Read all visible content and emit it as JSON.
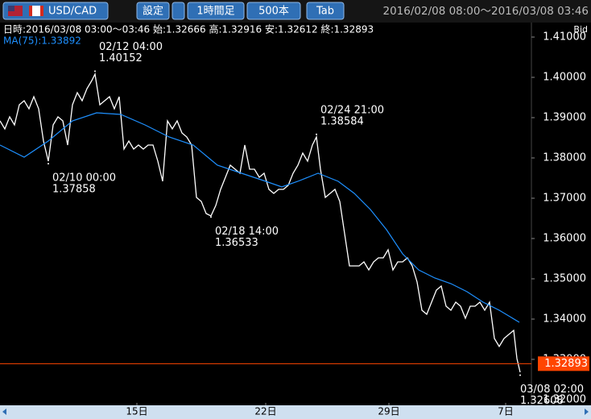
{
  "header": {
    "symbol": "USD/CAD",
    "settings": "設定",
    "timeframe": "1時間足",
    "bars": "500本",
    "tab": "Tab",
    "range": "2016/02/08 08:00～2016/03/08 03:46"
  },
  "chart_data": {
    "type": "line",
    "info": "日時:2016/03/08 03:00～03:46 始:1.32666 高:1.32916 安:1.32612 終:1.32893",
    "price_side": "Bid",
    "xlim": [
      0,
      660
    ],
    "xticks": [
      {
        "value": 170,
        "label": "15日"
      },
      {
        "value": 330,
        "label": "22日"
      },
      {
        "value": 483,
        "label": "29日"
      },
      {
        "value": 628,
        "label": "7日"
      }
    ],
    "ylim": [
      1.3192,
      1.4132
    ],
    "yticks": [
      {
        "value": 1.32,
        "label": "1.32000"
      },
      {
        "value": 1.33,
        "label": "1.33000"
      },
      {
        "value": 1.34,
        "label": "1.34000"
      },
      {
        "value": 1.35,
        "label": "1.35000"
      },
      {
        "value": 1.36,
        "label": "1.36000"
      },
      {
        "value": 1.37,
        "label": "1.37000"
      },
      {
        "value": 1.38,
        "label": "1.38000"
      },
      {
        "value": 1.39,
        "label": "1.39000"
      },
      {
        "value": 1.4,
        "label": "1.40000"
      },
      {
        "value": 1.41,
        "label": "1.41000"
      }
    ],
    "last_price": 1.32893,
    "last_price_color": "#ff4500",
    "x": [
      0,
      6,
      12,
      18,
      24,
      30,
      36,
      42,
      48,
      54,
      60,
      66,
      72,
      78,
      84,
      90,
      96,
      102,
      108,
      114,
      118,
      124,
      130,
      136,
      142,
      148,
      154,
      160,
      166,
      172,
      178,
      184,
      190,
      196,
      202,
      208,
      214,
      220,
      226,
      232,
      238,
      244,
      250,
      256,
      262,
      268,
      274,
      280,
      286,
      292,
      298,
      304,
      310,
      316,
      322,
      328,
      334,
      340,
      346,
      352,
      358,
      364,
      370,
      376,
      382,
      388,
      393,
      398,
      404,
      410,
      416,
      422,
      428,
      434,
      440,
      446,
      452,
      458,
      464,
      470,
      476,
      482,
      488,
      494,
      500,
      506,
      512,
      518,
      524,
      530,
      536,
      542,
      548,
      554,
      560,
      566,
      572,
      578,
      584,
      590,
      596,
      602,
      608,
      614,
      620,
      626,
      632,
      638,
      642,
      646
    ],
    "series": [
      {
        "name": "Price",
        "color": "#ffffff",
        "values": [
          1.3892,
          1.3872,
          1.3902,
          1.3882,
          1.3932,
          1.3942,
          1.3922,
          1.3952,
          1.3922,
          1.3842,
          1.3792,
          1.3882,
          1.3902,
          1.3892,
          1.3832,
          1.3932,
          1.3962,
          1.3942,
          1.3972,
          1.3992,
          1.4008,
          1.3932,
          1.3942,
          1.3952,
          1.3922,
          1.3952,
          1.3822,
          1.3842,
          1.3822,
          1.3832,
          1.3822,
          1.3832,
          1.3832,
          1.3792,
          1.3742,
          1.3892,
          1.3872,
          1.3892,
          1.3862,
          1.3852,
          1.3832,
          1.3702,
          1.3692,
          1.3662,
          1.3656,
          1.3682,
          1.3722,
          1.3752,
          1.3782,
          1.3772,
          1.3762,
          1.3832,
          1.3772,
          1.3772,
          1.3752,
          1.3762,
          1.3722,
          1.3712,
          1.3722,
          1.3722,
          1.3732,
          1.3762,
          1.3782,
          1.3812,
          1.3792,
          1.3832,
          1.3852,
          1.3772,
          1.3702,
          1.3712,
          1.3722,
          1.3692,
          1.3612,
          1.3532,
          1.3532,
          1.3532,
          1.3542,
          1.3522,
          1.3542,
          1.3552,
          1.3552,
          1.3572,
          1.3522,
          1.3542,
          1.3542,
          1.3552,
          1.3532,
          1.3492,
          1.3422,
          1.3412,
          1.3442,
          1.3472,
          1.3482,
          1.3432,
          1.3422,
          1.3442,
          1.3432,
          1.3402,
          1.3432,
          1.3432,
          1.3442,
          1.3422,
          1.3442,
          1.3352,
          1.3332,
          1.3352,
          1.3362,
          1.3372,
          1.3302,
          1.3268
        ]
      },
      {
        "name": "MA(75):1.33892",
        "color": "#1e90ff",
        "x": [
          0,
          30,
          60,
          90,
          120,
          150,
          180,
          210,
          240,
          270,
          300,
          330,
          350,
          370,
          395,
          420,
          440,
          460,
          480,
          500,
          520,
          540,
          560,
          580,
          600,
          620,
          645
        ],
        "values": [
          1.3832,
          1.3802,
          1.3842,
          1.3892,
          1.3912,
          1.3908,
          1.3882,
          1.3852,
          1.3832,
          1.3782,
          1.3762,
          1.3742,
          1.3728,
          1.3742,
          1.3762,
          1.3742,
          1.3712,
          1.3672,
          1.3622,
          1.3562,
          1.3522,
          1.3502,
          1.3488,
          1.3468,
          1.3442,
          1.3422,
          1.3392
        ]
      }
    ],
    "annotations": [
      {
        "time": "02/12 04:00",
        "x": 118,
        "value": 1.40152
      },
      {
        "time": "02/10 00:00",
        "x": 60,
        "value": 1.37858
      },
      {
        "time": "02/18 14:00",
        "x": 262,
        "value": 1.36533
      },
      {
        "time": "02/24 21:00",
        "x": 393,
        "value": 1.38584
      },
      {
        "time": "03/08 02:00",
        "x": 646,
        "value": 1.32608
      }
    ]
  }
}
